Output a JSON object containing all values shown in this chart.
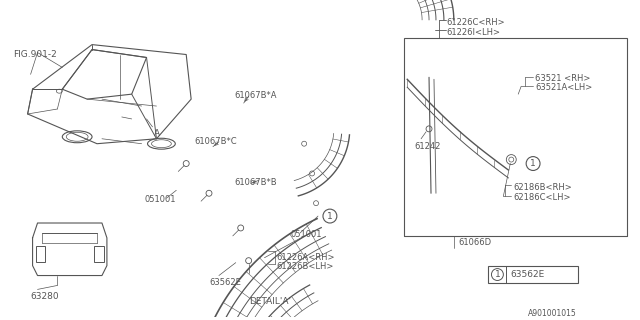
{
  "bg_color": "#ffffff",
  "line_color": "#555555",
  "text_color": "#555555",
  "fig_label": "FIG.901-2",
  "part_code": "A901001015",
  "lbl_61226C_RH": "61226C<RH>",
  "lbl_61226I_LH": "61226I<LH>",
  "lbl_63521_RH": "63521 <RH>",
  "lbl_63521A_LH": "63521A<LH>",
  "lbl_61242": "61242",
  "lbl_62186B_RH": "62186B<RH>",
  "lbl_62186C_LH": "62186C<LH>",
  "lbl_61066D": "61066D",
  "lbl_61067BA": "61067B*A",
  "lbl_61067BC": "61067B*C",
  "lbl_61067BB": "61067B*B",
  "lbl_051001": "051001",
  "lbl_61226A_RH": "61226A<RH>",
  "lbl_61226B_LH": "61226B<LH>",
  "lbl_63562E": "63562E",
  "lbl_63280": "63280",
  "lbl_detail_a": "DETAIL'A'",
  "lbl_1": "1"
}
